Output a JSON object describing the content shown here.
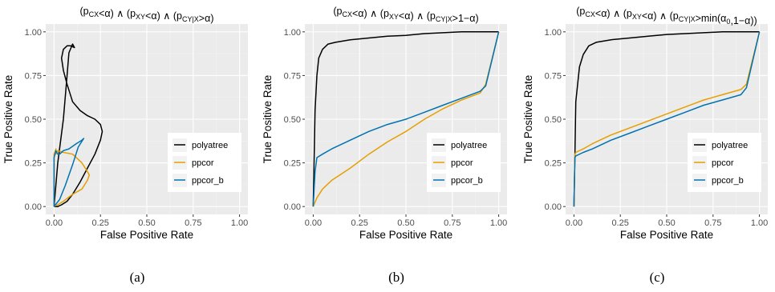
{
  "figure": {
    "captions": [
      "(a)",
      "(b)",
      "(c)"
    ]
  },
  "colors": {
    "panel_bg": "#EBEBEB",
    "grid_major": "#FFFFFF",
    "grid_minor": "#F4F4F4",
    "polyatree": "#000000",
    "ppcor": "#E69F00",
    "ppcor_b": "#0072B2"
  },
  "chart_data": [
    {
      "type": "line",
      "title": "(p_CX<α) ∧ (p_XY<α) ∧ (p_CY|X>α)",
      "title_parts": [
        {
          "t": "(p"
        },
        {
          "t": "CX",
          "sub": true
        },
        {
          "t": "<α) ∧ (p"
        },
        {
          "t": "XY",
          "sub": true
        },
        {
          "t": "<α) ∧ (p"
        },
        {
          "t": "CY|X",
          "sub": true
        },
        {
          "t": ">α)"
        }
      ],
      "xlabel": "False Positive Rate",
      "ylabel": "True Positive Rate",
      "xlim": [
        0,
        1
      ],
      "ylim": [
        0,
        1
      ],
      "xticks": [
        "0.00",
        "0.25",
        "0.50",
        "0.75",
        "1.00"
      ],
      "yticks": [
        "0.00",
        "0.25",
        "0.50",
        "0.75",
        "1.00"
      ],
      "grid": true,
      "legend_position": "right",
      "series": [
        {
          "name": "polyatree",
          "color_key": "polyatree",
          "x": [
            0.0,
            0.02,
            0.05,
            0.07,
            0.08,
            0.1,
            0.11,
            0.09,
            0.07,
            0.05,
            0.04,
            0.05,
            0.07,
            0.1,
            0.14,
            0.18,
            0.22,
            0.25,
            0.26,
            0.25,
            0.22,
            0.18,
            0.14,
            0.1,
            0.07,
            0.04,
            0.02,
            0.0
          ],
          "y": [
            0.0,
            0.25,
            0.5,
            0.75,
            0.88,
            0.93,
            0.91,
            0.92,
            0.92,
            0.9,
            0.85,
            0.78,
            0.7,
            0.6,
            0.55,
            0.52,
            0.5,
            0.47,
            0.43,
            0.38,
            0.3,
            0.22,
            0.14,
            0.07,
            0.03,
            0.01,
            0.0,
            0.0
          ]
        },
        {
          "name": "ppcor",
          "color_key": "ppcor",
          "x": [
            0.0,
            0.0,
            0.01,
            0.01,
            0.02,
            0.05,
            0.1,
            0.15,
            0.18,
            0.19,
            0.18,
            0.15,
            0.1,
            0.05,
            0.02,
            0.0
          ],
          "y": [
            0.0,
            0.3,
            0.33,
            0.3,
            0.32,
            0.31,
            0.3,
            0.25,
            0.2,
            0.18,
            0.15,
            0.1,
            0.07,
            0.03,
            0.01,
            0.0
          ]
        },
        {
          "name": "ppcor_b",
          "color_key": "ppcor_b",
          "x": [
            0.0,
            0.0,
            0.01,
            0.02,
            0.03,
            0.05,
            0.08,
            0.12,
            0.15,
            0.16,
            0.13,
            0.1,
            0.06,
            0.03,
            0.0
          ],
          "y": [
            0.0,
            0.28,
            0.32,
            0.3,
            0.3,
            0.32,
            0.33,
            0.36,
            0.38,
            0.39,
            0.34,
            0.24,
            0.12,
            0.04,
            0.0
          ]
        }
      ]
    },
    {
      "type": "line",
      "title": "(p_CX<α) ∧ (p_XY<α) ∧ (p_CY|X>1−α)",
      "title_parts": [
        {
          "t": "(p"
        },
        {
          "t": "CX",
          "sub": true
        },
        {
          "t": "<α) ∧ (p"
        },
        {
          "t": "XY",
          "sub": true
        },
        {
          "t": "<α) ∧ (p"
        },
        {
          "t": "CY|X",
          "sub": true
        },
        {
          "t": ">1−α)"
        }
      ],
      "xlabel": "False Positive Rate",
      "ylabel": "True Positive Rate",
      "xlim": [
        0,
        1
      ],
      "ylim": [
        0,
        1
      ],
      "xticks": [
        "0.00",
        "0.25",
        "0.50",
        "0.75",
        "1.00"
      ],
      "yticks": [
        "0.00",
        "0.25",
        "0.50",
        "0.75",
        "1.00"
      ],
      "grid": true,
      "legend_position": "right",
      "series": [
        {
          "name": "polyatree",
          "color_key": "polyatree",
          "x": [
            0.0,
            0.01,
            0.02,
            0.03,
            0.05,
            0.08,
            0.12,
            0.2,
            0.3,
            0.4,
            0.5,
            0.6,
            0.7,
            0.8,
            0.9,
            1.0
          ],
          "y": [
            0.0,
            0.55,
            0.75,
            0.85,
            0.9,
            0.93,
            0.94,
            0.955,
            0.965,
            0.975,
            0.98,
            0.99,
            0.995,
            1.0,
            1.0,
            1.0
          ]
        },
        {
          "name": "ppcor",
          "color_key": "ppcor",
          "x": [
            0.0,
            0.02,
            0.05,
            0.1,
            0.2,
            0.3,
            0.4,
            0.5,
            0.6,
            0.7,
            0.8,
            0.9,
            0.93,
            1.0
          ],
          "y": [
            0.0,
            0.05,
            0.1,
            0.15,
            0.22,
            0.3,
            0.37,
            0.43,
            0.5,
            0.56,
            0.61,
            0.65,
            0.7,
            1.0
          ]
        },
        {
          "name": "ppcor_b",
          "color_key": "ppcor_b",
          "x": [
            0.0,
            0.01,
            0.02,
            0.05,
            0.1,
            0.2,
            0.3,
            0.4,
            0.5,
            0.6,
            0.7,
            0.8,
            0.9,
            0.93,
            1.0
          ],
          "y": [
            0.0,
            0.2,
            0.28,
            0.3,
            0.33,
            0.38,
            0.43,
            0.47,
            0.5,
            0.54,
            0.58,
            0.62,
            0.66,
            0.69,
            1.0
          ]
        }
      ]
    },
    {
      "type": "line",
      "title": "(p_CX<α) ∧ (p_XY<α) ∧ (p_CY|X>min(α_0,1−α))",
      "title_parts": [
        {
          "t": "(p"
        },
        {
          "t": "CX",
          "sub": true
        },
        {
          "t": "<α) ∧ (p"
        },
        {
          "t": "XY",
          "sub": true
        },
        {
          "t": "<α) ∧ (p"
        },
        {
          "t": "CY|X",
          "sub": true
        },
        {
          "t": ">min(α"
        },
        {
          "t": "0",
          "sub": true
        },
        {
          "t": ",1−α))"
        }
      ],
      "xlabel": "False Positive Rate",
      "ylabel": "True Positive Rate",
      "xlim": [
        0,
        1
      ],
      "ylim": [
        0,
        1
      ],
      "xticks": [
        "0.00",
        "0.25",
        "0.50",
        "0.75",
        "1.00"
      ],
      "yticks": [
        "0.00",
        "0.25",
        "0.50",
        "0.75",
        "1.00"
      ],
      "grid": true,
      "legend_position": "right",
      "series": [
        {
          "name": "polyatree",
          "color_key": "polyatree",
          "x": [
            0.0,
            0.005,
            0.01,
            0.02,
            0.03,
            0.05,
            0.08,
            0.12,
            0.2,
            0.3,
            0.4,
            0.5,
            0.6,
            0.7,
            0.8,
            0.9,
            1.0
          ],
          "y": [
            0.0,
            0.3,
            0.6,
            0.7,
            0.8,
            0.87,
            0.92,
            0.94,
            0.955,
            0.965,
            0.975,
            0.985,
            0.99,
            0.995,
            1.0,
            1.0,
            1.0
          ]
        },
        {
          "name": "ppcor",
          "color_key": "ppcor",
          "x": [
            0.0,
            0.005,
            0.01,
            0.05,
            0.1,
            0.2,
            0.3,
            0.4,
            0.5,
            0.6,
            0.7,
            0.8,
            0.9,
            0.93,
            1.0
          ],
          "y": [
            0.0,
            0.3,
            0.31,
            0.33,
            0.36,
            0.41,
            0.45,
            0.49,
            0.53,
            0.57,
            0.61,
            0.64,
            0.67,
            0.7,
            1.0
          ]
        },
        {
          "name": "ppcor_b",
          "color_key": "ppcor_b",
          "x": [
            0.0,
            0.005,
            0.01,
            0.05,
            0.1,
            0.2,
            0.3,
            0.4,
            0.5,
            0.6,
            0.7,
            0.8,
            0.9,
            0.93,
            1.0
          ],
          "y": [
            0.0,
            0.28,
            0.29,
            0.31,
            0.33,
            0.38,
            0.42,
            0.46,
            0.5,
            0.54,
            0.58,
            0.61,
            0.64,
            0.68,
            1.0
          ]
        }
      ]
    }
  ]
}
